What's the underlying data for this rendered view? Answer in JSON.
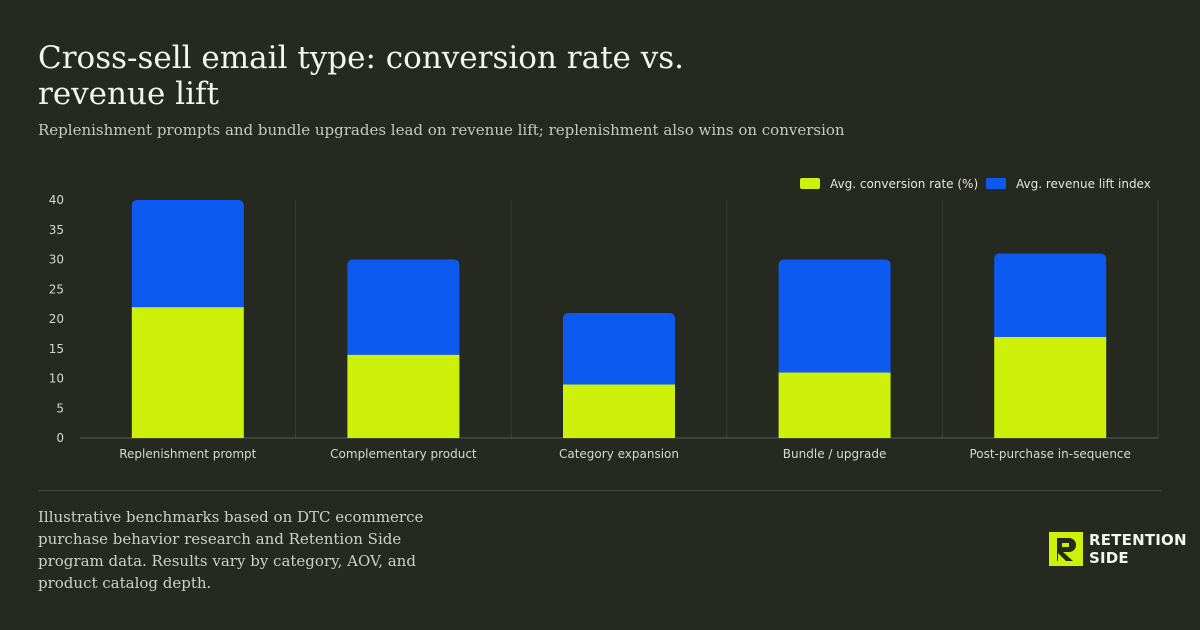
{
  "title": "Cross-sell email type: conversion rate vs. revenue lift",
  "subtitle": "Replenishment prompts and bundle upgrades lead on revenue lift; replenishment also wins on conversion",
  "footnote": "Illustrative benchmarks based on DTC ecommerce purchase behavior research and Retention Side program data. Results vary by category, AOV, and product catalog depth.",
  "logo": {
    "line1": "RETENTION",
    "line2": "SIDE",
    "mark": "retention-side-logo-icon"
  },
  "colors": {
    "background": "#262920",
    "conversion": "#cdf10a",
    "revenue": "#0d5af0",
    "grid": "#3b3e34"
  },
  "chart_data": {
    "type": "bar",
    "stacked": true,
    "categories": [
      "Replenishment prompt",
      "Complementary product",
      "Category expansion",
      "Bundle / upgrade",
      "Post-purchase in-sequence"
    ],
    "series": [
      {
        "name": "Avg. conversion rate (%)",
        "values": [
          22,
          14,
          9,
          11,
          17
        ]
      },
      {
        "name": "Avg. revenue lift index",
        "values": [
          18,
          16,
          12,
          19,
          14
        ]
      }
    ],
    "ylim": [
      0,
      40
    ],
    "yticks": [
      0,
      5,
      10,
      15,
      20,
      25,
      30,
      35,
      40
    ],
    "legend": "top-right",
    "grid": "vertical category separators"
  }
}
